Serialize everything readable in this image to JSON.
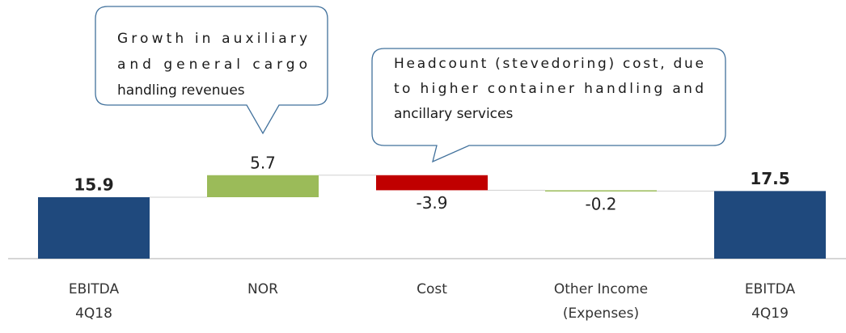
{
  "chart_data": {
    "type": "waterfall",
    "categories": [
      [
        "EBITDA",
        "4Q18"
      ],
      [
        "NOR"
      ],
      [
        "Cost"
      ],
      [
        "Other Income",
        "(Expenses)"
      ],
      [
        "EBITDA",
        "4Q19"
      ]
    ],
    "values": [
      15.9,
      5.7,
      -3.9,
      -0.2,
      17.5
    ],
    "colors": [
      "#1f497d",
      "#9bbb59",
      "#c00000",
      "#9bbb59",
      "#1f497d"
    ],
    "annotations": [
      {
        "lines": [
          "Growth in auxiliary",
          "and general cargo",
          "handling revenues"
        ]
      },
      {
        "lines": [
          "Headcount (stevedoring) cost, due",
          "to higher container handling and",
          "ancillary services"
        ]
      }
    ]
  }
}
